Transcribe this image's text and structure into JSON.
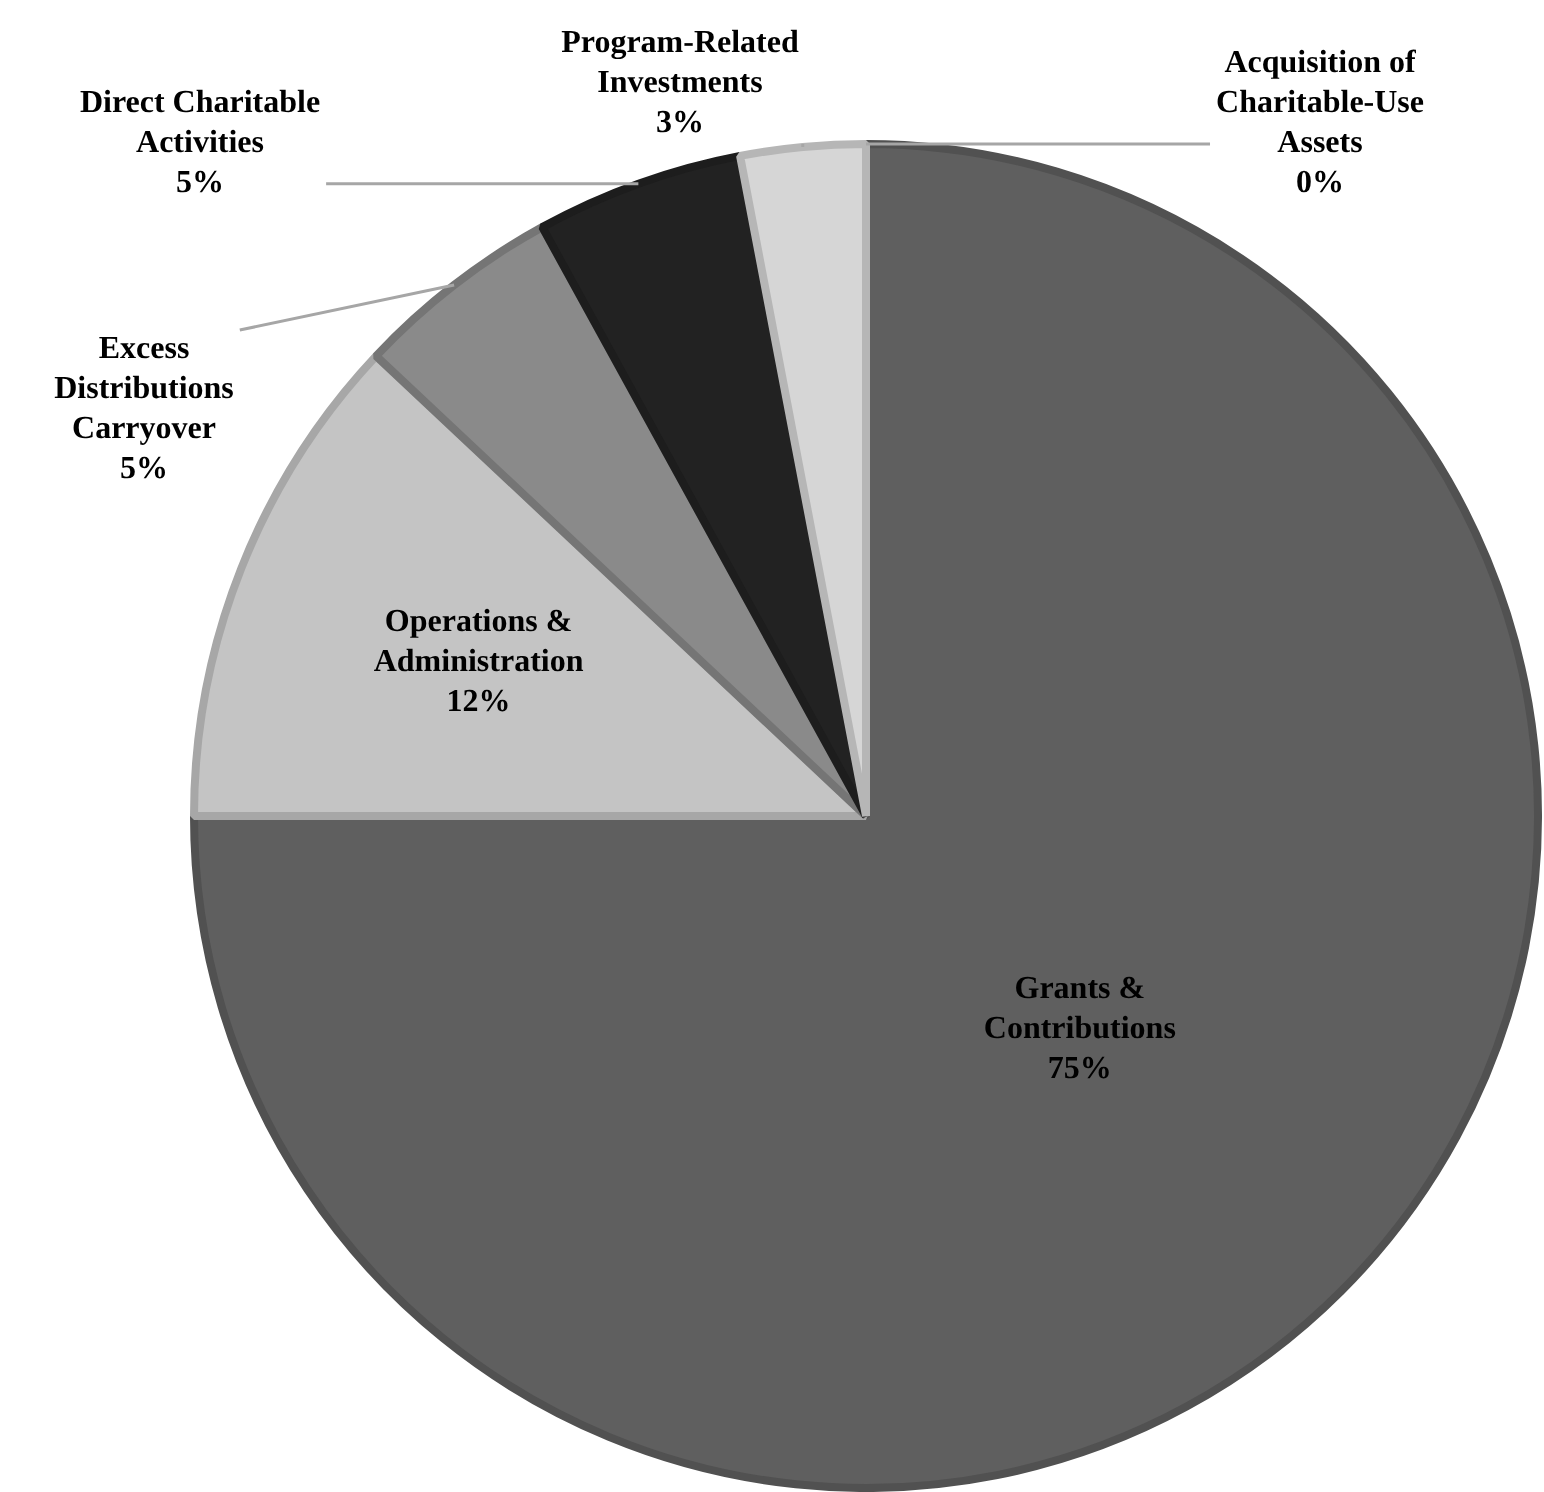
{
  "chart_data": {
    "type": "pie",
    "categories": [
      "Grants & Contributions",
      "Operations & Administration",
      "Excess Distributions Carryover",
      "Direct Charitable Activities",
      "Program-Related Investments",
      "Acquisition of Charitable-Use Assets"
    ],
    "values": [
      75,
      12,
      5,
      5,
      3,
      0
    ],
    "colors": [
      "#5f5f5f",
      "#c4c4c4",
      "#8a8a8a",
      "#222222",
      "#d6d6d6",
      "#a6a6a6"
    ],
    "value_labels": [
      "75%",
      "12%",
      "5%",
      "5%",
      "3%",
      "0%"
    ],
    "legend": false
  }
}
